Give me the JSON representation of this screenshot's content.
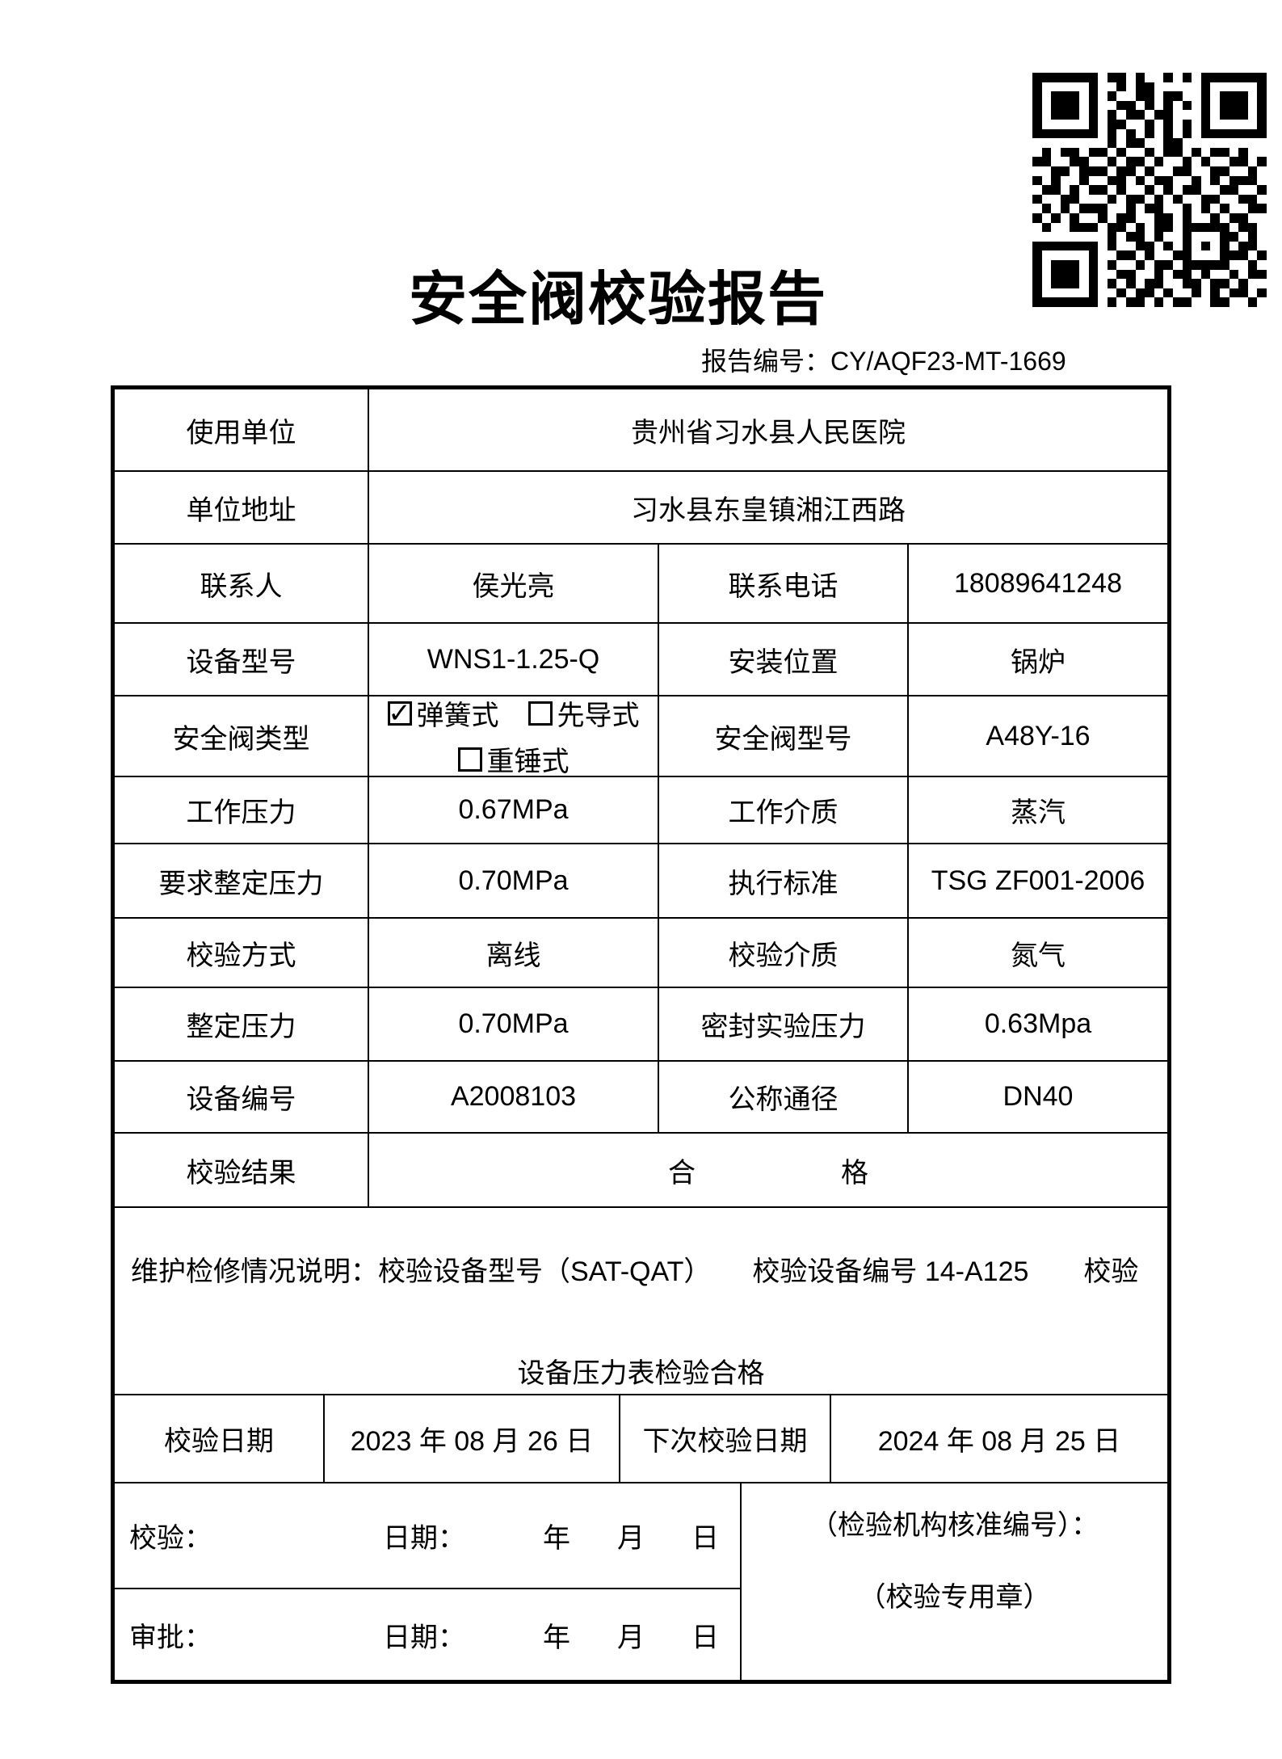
{
  "header": {
    "title": "安全阀校验报告",
    "report_no_label": "报告编号：",
    "report_no": "CY/AQF23-MT-1669"
  },
  "qr_rows": [
    "1111111011010010101111111",
    "1000001001011000001000001",
    "1011101010011011001011101",
    "1011101001101010101011101",
    "1011101010110110001011101",
    "1000001011001010101000001",
    "1111111010101010101111111",
    "0000000010110011000000000",
    "0101101101001011010110100",
    "1100110010110100101001101",
    "0011011101101001100110010",
    "1010010011010110010101110",
    "0110101101001010110011001",
    "1001100010110101001100110",
    "0101011100101100101010011",
    "1010100101100110100101100",
    "0100111011010110111110110",
    "0000000010110100100011010",
    "1111111010011010101010110",
    "1000001001101001100011101",
    "1011101010010110111110010",
    "1011101001100101101001011",
    "1011101010101100110110100",
    "1000001001011010010101101",
    "1111111010110101100110010"
  ],
  "info": {
    "r1_label": "使用单位",
    "r1_value": "贵州省习水县人民医院",
    "r2_label": "单位地址",
    "r2_value": "习水县东皇镇湘江西路",
    "r3_l1": "联系人",
    "r3_v1": "侯光亮",
    "r3_l2": "联系电话",
    "r3_v2": "18089641248",
    "r4_l1": "设备型号",
    "r4_v1": "WNS1-1.25-Q",
    "r4_l2": "安装位置",
    "r4_v2": "锅炉",
    "r5_l1": "安全阀类型",
    "valve_types": [
      {
        "mark": "✓",
        "label": "弹簧式"
      },
      {
        "mark": "",
        "label": "先导式"
      },
      {
        "mark": "",
        "label": "重锤式"
      }
    ],
    "r5_l2": "安全阀型号",
    "r5_v2": "A48Y-16",
    "r6_l1": "工作压力",
    "r6_v1": "0.67MPa",
    "r6_l2": "工作介质",
    "r6_v2": "蒸汽",
    "r7_l1": "要求整定压力",
    "r7_v1": "0.70MPa",
    "r7_l2": "执行标准",
    "r7_v2": "TSG ZF001-2006",
    "r8_l1": "校验方式",
    "r8_v1": "离线",
    "r8_l2": "校验介质",
    "r8_v2": "氮气",
    "r9_l1": "整定压力",
    "r9_v1": "0.70MPa",
    "r9_l2": "密封实验压力",
    "r9_v2": "0.63Mpa",
    "r10_l1": "设备编号",
    "r10_v1": "A2008103",
    "r10_l2": "公称通径",
    "r10_v2": "DN40",
    "r11_label": "校验结果",
    "result_left": "合",
    "result_right": "格",
    "maint_line1": "维护检修情况说明：校验设备型号（SAT-QAT）　　校验设备编号 14-A125　　校验",
    "maint_line2": "设备压力表检验合格",
    "r13_l1": "校验日期",
    "r13_v1": "2023 年 08 月 26 日",
    "r13_l2": "下次校验日期",
    "r13_v2": "2024 年 08 月 25 日",
    "sign_label": "校验：",
    "approve_label": "审批：",
    "date_label": "日期：",
    "ymd": "年　月　日",
    "org_line1": "（检验机构核准编号）：",
    "org_line2": "（校验专用章）"
  }
}
